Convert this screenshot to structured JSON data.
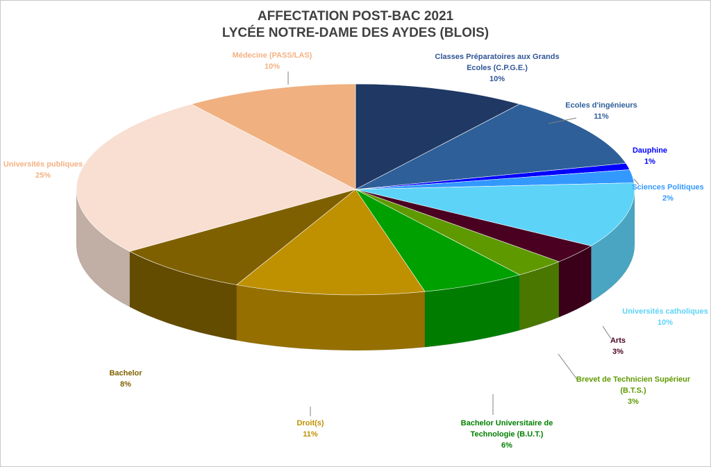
{
  "chart_data": {
    "type": "pie",
    "title_line1": "AFFECTATION  POST-BAC 2021",
    "title_line2": "LYCÉE NOTRE-DAME DES AYDES (BLOIS)",
    "slices": [
      {
        "label": [
          "Classes Préparatoires aux Grands",
          "Ecoles (C.P.G.E.)"
        ],
        "value": 10,
        "pct": "10%",
        "color": "#1f3864",
        "label_color": "#2f5597"
      },
      {
        "label": [
          "Ecoles d'ingénieurs"
        ],
        "value": 11,
        "pct": "11%",
        "color": "#2e5f99",
        "label_color": "#2e5f99"
      },
      {
        "label": [
          "Dauphine"
        ],
        "value": 1,
        "pct": "1%",
        "color": "#0000ff",
        "label_color": "#0000ff"
      },
      {
        "label": [
          "Sciences Politiques"
        ],
        "value": 2,
        "pct": "2%",
        "color": "#3399ff",
        "label_color": "#3399ff"
      },
      {
        "label": [
          "Universités catholiques"
        ],
        "value": 10,
        "pct": "10%",
        "color": "#5dd3f7",
        "label_color": "#5dd3f7"
      },
      {
        "label": [
          "Arts"
        ],
        "value": 3,
        "pct": "3%",
        "color": "#4a0020",
        "label_color": "#4a0020"
      },
      {
        "label": [
          "Brevet de Technicien Supérieur",
          "(B.T.S.)"
        ],
        "value": 3,
        "pct": "3%",
        "color": "#5f9900",
        "label_color": "#5f9900"
      },
      {
        "label": [
          "Bachelor Universitaire de",
          "Technologie (B.U.T.)"
        ],
        "value": 6,
        "pct": "6%",
        "color": "#00a000",
        "label_color": "#008000"
      },
      {
        "label": [
          "Droit(s)"
        ],
        "value": 11,
        "pct": "11%",
        "color": "#bf9000",
        "label_color": "#bf9000"
      },
      {
        "label": [
          "Bachelor"
        ],
        "value": 8,
        "pct": "8%",
        "color": "#7f6000",
        "label_color": "#7f6000"
      },
      {
        "label": [
          "Universités publiques"
        ],
        "value": 25,
        "pct": "25%",
        "color": "#f8dfd2",
        "label_color": "#f4b183"
      },
      {
        "label": [
          "Médecine (PASS/LAS)"
        ],
        "value": 10,
        "pct": "10%",
        "color": "#f0b080",
        "label_color": "#f4b183"
      }
    ]
  }
}
